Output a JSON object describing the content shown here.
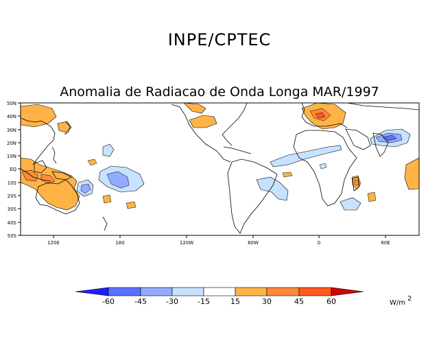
{
  "header": {
    "organization": "INPE/CPTEC",
    "title": "Anomalia de Radiacao de Onda Longa MAR/1997"
  },
  "map": {
    "lat_labels": [
      "50N",
      "40N",
      "30N",
      "20N",
      "10N",
      "EQ",
      "10S",
      "20S",
      "30S",
      "40S",
      "50S"
    ],
    "lon_labels": [
      "120E",
      "180",
      "120W",
      "60W",
      "0",
      "60E"
    ]
  },
  "colorbar": {
    "levels": [
      "-60",
      "-45",
      "-30",
      "-15",
      "15",
      "30",
      "45",
      "60"
    ],
    "unit_main": "W/m",
    "unit_exp": "2",
    "colors": {
      "lt_m60": "#1f1fff",
      "m60_m45": "#5a72ff",
      "m45_m30": "#94aaff",
      "m30_m15": "#c6e2ff",
      "m15_15": "#ffffff",
      "p15_30": "#ffb347",
      "p30_45": "#ff8a3c",
      "p45_60": "#ff5a1e",
      "gt_60": "#d40000"
    }
  }
}
